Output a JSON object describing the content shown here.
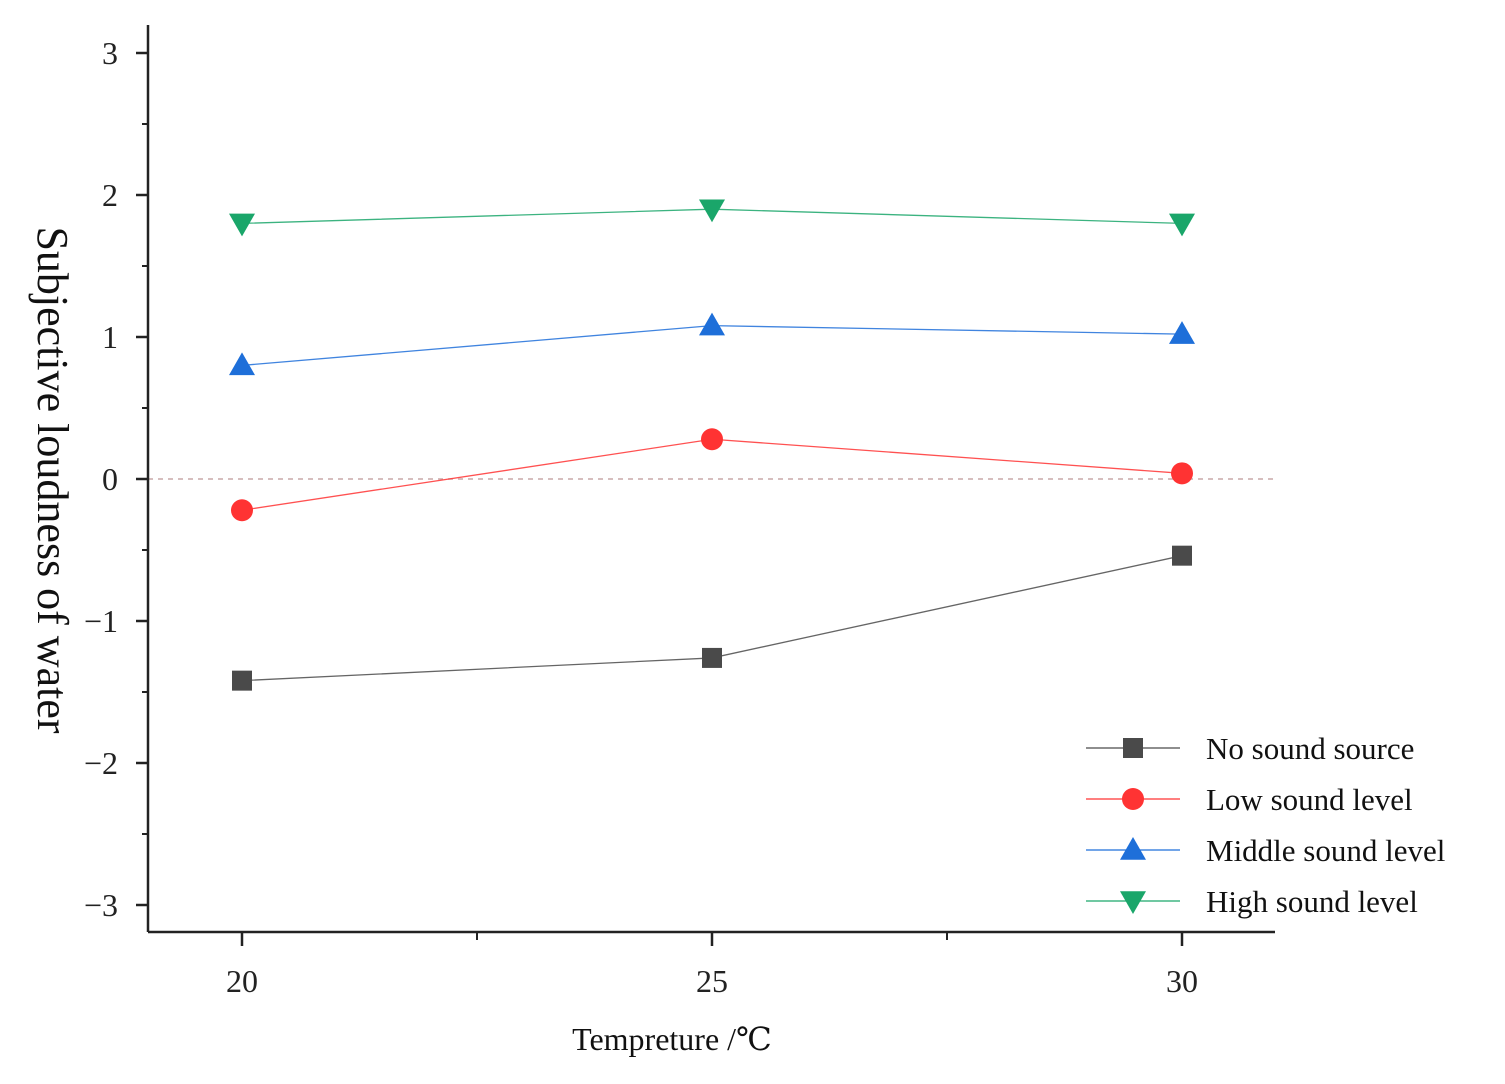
{
  "chart_data": {
    "type": "line",
    "title": "",
    "xlabel": "Tempreture /℃",
    "ylabel": "Subjective loudness of water",
    "x": [
      20,
      25,
      30
    ],
    "x_tick_labels": [
      "20",
      "25",
      "30"
    ],
    "xlim": [
      19,
      31
    ],
    "ylim": [
      -3.2,
      3.2
    ],
    "y_ticks": [
      -3,
      -2,
      -1,
      0,
      1,
      2,
      3
    ],
    "y_tick_labels": [
      "−3",
      "−2",
      "−1",
      "0",
      "1",
      "2",
      "3"
    ],
    "reference_line": {
      "y": 0,
      "style": "dashed"
    },
    "grid": false,
    "legend_position": "bottom-right",
    "series": [
      {
        "name": "No sound source",
        "marker": "square",
        "color": "#4a4a4a",
        "values": [
          -1.42,
          -1.26,
          -0.54
        ]
      },
      {
        "name": "Low sound level",
        "marker": "circle",
        "color": "#ff3333",
        "values": [
          -0.22,
          0.28,
          0.04
        ]
      },
      {
        "name": "Middle sound level",
        "marker": "triangle-up",
        "color": "#1e6fd9",
        "values": [
          0.8,
          1.08,
          1.02
        ]
      },
      {
        "name": "High sound level",
        "marker": "triangle-down",
        "color": "#1aa66a",
        "values": [
          1.8,
          1.9,
          1.8
        ]
      }
    ]
  }
}
